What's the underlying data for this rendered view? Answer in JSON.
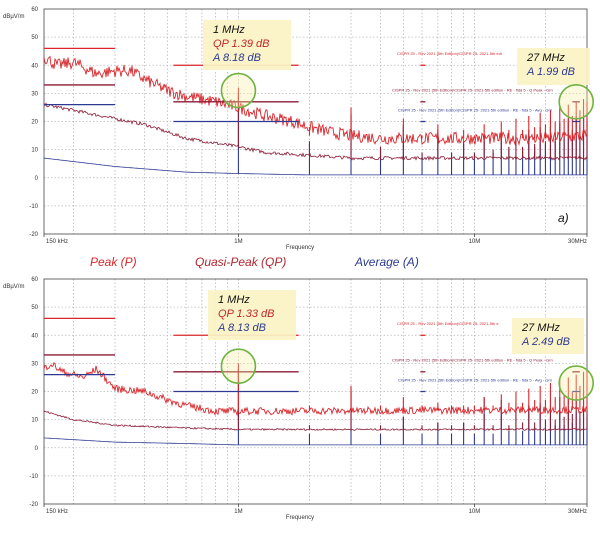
{
  "chart_data": [
    {
      "type": "line",
      "panel_label": "a)",
      "ylabel": "dBµV/m",
      "xlabel": "Frequency",
      "xscale": "log",
      "xlim_mhz": [
        0.15,
        30
      ],
      "ylim": [
        -20,
        60
      ],
      "grid": true,
      "yticks": [
        "60",
        "50",
        "40",
        "30",
        "20",
        "10",
        "0",
        "-10",
        "-20"
      ],
      "xticks": [
        {
          "f": 0.15,
          "label": "150 kHz"
        },
        {
          "f": 1,
          "label": "1M"
        },
        {
          "f": 10,
          "label": "10M"
        },
        {
          "f": 30,
          "label": "30MHz"
        }
      ],
      "series": [
        {
          "name": "Peak (P)",
          "color": "#d8262b",
          "noise_db": 2.2,
          "points": [
            [
              0.15,
              43
            ],
            [
              0.17,
              40
            ],
            [
              0.2,
              41
            ],
            [
              0.25,
              37
            ],
            [
              0.3,
              38
            ],
            [
              0.35,
              38
            ],
            [
              0.4,
              35
            ],
            [
              0.5,
              31
            ],
            [
              0.6,
              29
            ],
            [
              0.8,
              27
            ],
            [
              1.0,
              25
            ],
            [
              1.3,
              22
            ],
            [
              1.7,
              20
            ],
            [
              2.0,
              18
            ],
            [
              2.5,
              16
            ],
            [
              3,
              15
            ],
            [
              4,
              14
            ],
            [
              6,
              14
            ],
            [
              10,
              14
            ],
            [
              20,
              14
            ],
            [
              30,
              15
            ]
          ],
          "harmonics_db": [
            32,
            15,
            25,
            14,
            21,
            15,
            19,
            14,
            17,
            15,
            19,
            16,
            20,
            17,
            21,
            17,
            22,
            18,
            23,
            19,
            24,
            20,
            25,
            21,
            26,
            22,
            27,
            24,
            28,
            27
          ]
        },
        {
          "name": "Quasi-Peak (QP)",
          "color": "#8c1c36",
          "noise_db": 0.6,
          "points": [
            [
              0.15,
              26
            ],
            [
              0.2,
              24
            ],
            [
              0.3,
              21
            ],
            [
              0.4,
              19
            ],
            [
              0.6,
              14
            ],
            [
              1.0,
              11
            ],
            [
              1.3,
              9
            ],
            [
              2,
              8
            ],
            [
              3,
              7
            ],
            [
              30,
              7
            ]
          ],
          "harmonics_db": [
            30,
            13,
            23,
            11,
            19,
            9,
            17,
            9,
            13,
            9,
            15,
            10,
            16,
            11,
            16,
            11,
            17,
            12,
            18,
            13,
            19,
            14,
            20,
            15,
            21,
            17,
            22,
            19,
            23,
            21
          ]
        },
        {
          "name": "Average (A)",
          "color": "#2e3a92",
          "noise_db": 0,
          "points": [
            [
              0.15,
              7
            ],
            [
              0.3,
              4
            ],
            [
              0.6,
              2
            ],
            [
              1,
              1.5
            ],
            [
              2,
              1
            ],
            [
              30,
              1
            ]
          ],
          "harmonics_db": [
            29,
            12,
            22,
            10,
            18,
            9,
            16,
            9,
            12,
            8,
            14,
            9,
            15,
            10,
            15,
            10,
            16,
            11,
            17,
            12,
            18,
            13,
            19,
            14,
            20,
            16,
            21,
            18,
            22,
            20
          ]
        }
      ],
      "limits": [
        {
          "kind": "Peak",
          "color": "#d8262b",
          "segments": [
            [
              0.15,
              0.3,
              46
            ],
            [
              0.53,
              1.8,
              40
            ],
            [
              5.9,
              6.2,
              40
            ]
          ]
        },
        {
          "kind": "QP",
          "color": "#8c1c36",
          "segments": [
            [
              0.15,
              0.3,
              33
            ],
            [
              0.53,
              1.8,
              27
            ],
            [
              5.9,
              6.2,
              27
            ],
            [
              26,
              28,
              27
            ]
          ]
        },
        {
          "kind": "Average",
          "color": "#2e3a92",
          "segments": [
            [
              0.15,
              0.3,
              26
            ],
            [
              0.53,
              1.8,
              20
            ],
            [
              5.9,
              6.2,
              20
            ],
            [
              26,
              28,
              20
            ]
          ]
        }
      ],
      "limit_labels": [
        {
          "text": "CISPR 25 - Rev 2021 (5th Edition)\\CISPR 25- 2021-5th edi",
          "color": "#d8262b",
          "db": 44
        },
        {
          "text": "CISPR 25 - Rev 2021 (5th Edition)\\CISPR 25- 2021-5th edition - RE - fidà 5 - Q Peak - Grn",
          "color": "#8c1c36",
          "db": 31
        },
        {
          "text": "CISPR 25 - Rev 2021 (5th Edition)\\CISPR 25- 2021-5th edition - RE - fidà 5 - Avg - Grn",
          "color": "#2e3a92",
          "db": 24
        }
      ],
      "annotations": [
        {
          "lines": [
            {
              "text": "1 MHz",
              "color": "#111"
            },
            {
              "text": "QP 1.39 dB",
              "color": "#c0282b"
            },
            {
              "text": "A 8.18 dB",
              "color": "#2e3a92"
            }
          ],
          "marker_f": 1,
          "marker_db": 31
        },
        {
          "lines": [
            {
              "text": "27 MHz",
              "color": "#111"
            },
            {
              "text": "A 1.99 dB",
              "color": "#2e3a92"
            }
          ],
          "marker_f": 27,
          "marker_db": 27
        }
      ]
    },
    {
      "type": "line",
      "panel_label": "",
      "ylabel": "dBµV/m",
      "xlabel": "Frequency",
      "xscale": "log",
      "xlim_mhz": [
        0.15,
        30
      ],
      "ylim": [
        -20,
        60
      ],
      "grid": true,
      "yticks": [
        "60",
        "50",
        "40",
        "30",
        "20",
        "10",
        "0",
        "-10",
        "-20"
      ],
      "xticks": [
        {
          "f": 0.15,
          "label": "150 kHz"
        },
        {
          "f": 1,
          "label": "1M"
        },
        {
          "f": 10,
          "label": "10M"
        },
        {
          "f": 30,
          "label": "30MHz"
        }
      ],
      "series": [
        {
          "name": "Peak (P)",
          "color": "#d8262b",
          "noise_db": 1.3,
          "points": [
            [
              0.15,
              28
            ],
            [
              0.16,
              30
            ],
            [
              0.18,
              27
            ],
            [
              0.22,
              25
            ],
            [
              0.25,
              28
            ],
            [
              0.3,
              21
            ],
            [
              0.4,
              20
            ],
            [
              0.5,
              17
            ],
            [
              0.6,
              15
            ],
            [
              0.8,
              13
            ],
            [
              1,
              13
            ],
            [
              30,
              13.5
            ]
          ],
          "harmonics_db": [
            30,
            15,
            22,
            15,
            18,
            15,
            16,
            15,
            15,
            15,
            18,
            15,
            19,
            16,
            20,
            16,
            21,
            17,
            22,
            17,
            23,
            18,
            24,
            19,
            25,
            20,
            26,
            22,
            27,
            28
          ]
        },
        {
          "name": "Quasi-Peak (QP)",
          "color": "#8c1c36",
          "noise_db": 0.3,
          "points": [
            [
              0.15,
              13
            ],
            [
              0.2,
              10
            ],
            [
              0.3,
              8
            ],
            [
              0.6,
              7
            ],
            [
              1,
              6.5
            ],
            [
              30,
              6.5
            ]
          ],
          "harmonics_db": [
            28,
            8,
            20,
            8,
            11,
            8,
            9,
            8,
            9,
            8,
            12,
            8,
            13,
            8,
            14,
            9,
            15,
            9,
            16,
            10,
            17,
            10,
            18,
            11,
            18,
            12,
            19,
            13,
            20,
            14
          ]
        },
        {
          "name": "Average (A)",
          "color": "#2e3a92",
          "noise_db": 0,
          "points": [
            [
              0.15,
              3.5
            ],
            [
              0.3,
              2
            ],
            [
              0.6,
              1.5
            ],
            [
              1,
              1
            ],
            [
              30,
              1
            ]
          ],
          "harmonics_db": [
            29,
            5,
            21,
            5,
            11,
            5,
            9,
            5,
            9,
            5,
            18,
            5,
            17,
            6,
            16,
            6,
            15,
            7,
            15,
            7,
            14,
            8,
            14,
            8,
            13,
            9,
            13,
            10,
            12,
            11
          ]
        }
      ],
      "limits": [
        {
          "kind": "Peak",
          "color": "#d8262b",
          "segments": [
            [
              0.15,
              0.3,
              46
            ],
            [
              0.53,
              1.8,
              40
            ],
            [
              5.9,
              6.2,
              40
            ]
          ]
        },
        {
          "kind": "QP",
          "color": "#8c1c36",
          "segments": [
            [
              0.15,
              0.3,
              33
            ],
            [
              0.53,
              1.8,
              27
            ],
            [
              5.9,
              6.2,
              27
            ],
            [
              26,
              28,
              27
            ]
          ]
        },
        {
          "kind": "Average",
          "color": "#2e3a92",
          "segments": [
            [
              0.15,
              0.3,
              26
            ],
            [
              0.53,
              1.8,
              20
            ],
            [
              5.9,
              6.2,
              20
            ],
            [
              26,
              28,
              20
            ]
          ]
        }
      ],
      "limit_labels": [
        {
          "text": "CISPR 25 - Rev 2021 (5th Edition)\\CISPR 25- 2021-5th e",
          "color": "#d8262b",
          "db": 44
        },
        {
          "text": "CISPR 25 - Rev 2021 (5th Edition)\\CISPR 25- 2021-5th edition - RE - fidà 5 - Q Peak - Grn",
          "color": "#8c1c36",
          "db": 31
        },
        {
          "text": "CISPR 25 - Rev 2021 (5th Edition)\\CISPR 25- 2021-5th edition - RE - fidà 5 - Avg - Grn",
          "color": "#2e3a92",
          "db": 24
        }
      ],
      "annotations": [
        {
          "lines": [
            {
              "text": "1 MHz",
              "color": "#111"
            },
            {
              "text": "QP 1.33 dB",
              "color": "#c0282b"
            },
            {
              "text": "A 8.13 dB",
              "color": "#2e3a92"
            }
          ],
          "marker_f": 1,
          "marker_db": 29
        },
        {
          "lines": [
            {
              "text": "27 MHz",
              "color": "#111"
            },
            {
              "text": "A 2.49 dB",
              "color": "#2e3a92"
            }
          ],
          "marker_f": 27,
          "marker_db": 23
        }
      ]
    }
  ],
  "legend": [
    {
      "label": "Peak (P)",
      "color": "#d8262b"
    },
    {
      "label": "Quasi-Peak (QP)",
      "color": "#b3262f"
    },
    {
      "label": "Average (A)",
      "color": "#2e3a92"
    }
  ],
  "colors": {
    "grid": "#b8b8b8",
    "axis": "#444",
    "annotation_bg": "#fbf3c4",
    "marker_circle": "#6db33f"
  }
}
